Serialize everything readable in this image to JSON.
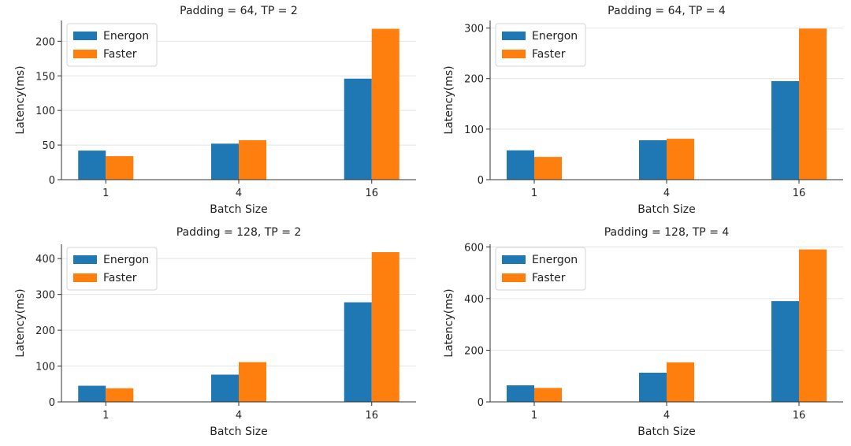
{
  "chart_data": [
    {
      "type": "bar",
      "title": "Padding = 64, TP = 2",
      "xlabel": "Batch Size",
      "ylabel": "Latency(ms)",
      "categories": [
        "1",
        "4",
        "16"
      ],
      "ylim": [
        0,
        230
      ],
      "yticks": [
        0,
        50,
        100,
        150,
        200
      ],
      "grid": true,
      "legend": "top-left",
      "series": [
        {
          "name": "Energon",
          "color": "#1f77b4",
          "values": [
            42,
            52,
            146
          ]
        },
        {
          "name": "Faster",
          "color": "#ff7f0e",
          "values": [
            34,
            57,
            218
          ]
        }
      ]
    },
    {
      "type": "bar",
      "title": "Padding = 64, TP = 4",
      "xlabel": "Batch Size",
      "ylabel": "Latency(ms)",
      "categories": [
        "1",
        "4",
        "16"
      ],
      "ylim": [
        0,
        315
      ],
      "yticks": [
        0,
        100,
        200,
        300
      ],
      "grid": true,
      "legend": "top-left",
      "series": [
        {
          "name": "Energon",
          "color": "#1f77b4",
          "values": [
            58,
            78,
            195
          ]
        },
        {
          "name": "Faster",
          "color": "#ff7f0e",
          "values": [
            45,
            81,
            299
          ]
        }
      ]
    },
    {
      "type": "bar",
      "title": "Padding = 128, TP = 2",
      "xlabel": "Batch Size",
      "ylabel": "Latency(ms)",
      "categories": [
        "1",
        "4",
        "16"
      ],
      "ylim": [
        0,
        440
      ],
      "yticks": [
        0,
        100,
        200,
        300,
        400
      ],
      "grid": true,
      "legend": "top-left",
      "series": [
        {
          "name": "Energon",
          "color": "#1f77b4",
          "values": [
            45,
            76,
            278
          ]
        },
        {
          "name": "Faster",
          "color": "#ff7f0e",
          "values": [
            38,
            111,
            418
          ]
        }
      ]
    },
    {
      "type": "bar",
      "title": "Padding = 128, TP = 4",
      "xlabel": "Batch Size",
      "ylabel": "Latency(ms)",
      "categories": [
        "1",
        "4",
        "16"
      ],
      "ylim": [
        0,
        610
      ],
      "yticks": [
        0,
        200,
        400,
        600
      ],
      "grid": true,
      "legend": "top-left",
      "series": [
        {
          "name": "Energon",
          "color": "#1f77b4",
          "values": [
            64,
            113,
            390
          ]
        },
        {
          "name": "Faster",
          "color": "#ff7f0e",
          "values": [
            54,
            153,
            590
          ]
        }
      ]
    }
  ]
}
